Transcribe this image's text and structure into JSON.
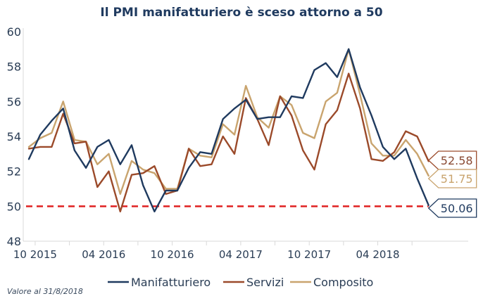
{
  "chart_data": {
    "type": "line",
    "title": "Il PMI manifatturiero è sceso attorno a 50",
    "xlabel": "",
    "ylabel": "",
    "ylim": [
      48,
      60
    ],
    "yticks": [
      "48",
      "50",
      "52",
      "54",
      "56",
      "58",
      "60"
    ],
    "x": [
      "09 2015",
      "10 2015",
      "11 2015",
      "12 2015",
      "01 2016",
      "02 2016",
      "03 2016",
      "04 2016",
      "05 2016",
      "06 2016",
      "07 2016",
      "08 2016",
      "09 2016",
      "10 2016",
      "11 2016",
      "12 2016",
      "01 2017",
      "02 2017",
      "03 2017",
      "04 2017",
      "05 2017",
      "06 2017",
      "07 2017",
      "08 2017",
      "09 2017",
      "10 2017",
      "11 2017",
      "12 2017",
      "01 2018",
      "02 2018",
      "03 2018",
      "04 2018",
      "05 2018",
      "06 2018",
      "07 2018",
      "08 2018"
    ],
    "xtick_labels": [
      "10 2015",
      "04 2016",
      "10 2016",
      "04 2017",
      "10 2017",
      "04 2018"
    ],
    "grid": false,
    "legend_position": "bottom",
    "reference_line": {
      "value": 50,
      "style": "dashed",
      "color": "#e02020"
    },
    "series": [
      {
        "name": "Manifatturiero",
        "color": "#1f3a5f",
        "values": [
          52.7,
          54.1,
          54.9,
          55.6,
          53.2,
          52.2,
          53.4,
          53.8,
          52.4,
          53.5,
          51.2,
          49.7,
          50.9,
          50.9,
          52.2,
          53.1,
          53.0,
          55.0,
          55.6,
          56.1,
          55.0,
          55.1,
          55.1,
          56.3,
          56.2,
          57.8,
          58.2,
          57.4,
          59.0,
          56.8,
          55.2,
          53.4,
          52.7,
          53.3,
          51.6,
          50.06
        ],
        "end_label": "50.06"
      },
      {
        "name": "Servizi",
        "color": "#9b4a2a",
        "values": [
          53.3,
          53.4,
          53.4,
          55.3,
          53.6,
          53.7,
          51.1,
          52.0,
          49.7,
          51.8,
          51.9,
          52.3,
          50.7,
          50.9,
          53.3,
          52.3,
          52.4,
          54.0,
          53.0,
          56.2,
          55.0,
          53.5,
          56.3,
          55.2,
          53.2,
          52.1,
          54.7,
          55.5,
          57.6,
          55.6,
          52.7,
          52.6,
          53.1,
          54.3,
          54.0,
          52.58
        ],
        "end_label": "52.58"
      },
      {
        "name": "Composito",
        "color": "#c9a46e",
        "values": [
          53.4,
          53.9,
          54.2,
          56.0,
          53.8,
          53.7,
          52.4,
          53.0,
          50.7,
          52.6,
          52.1,
          51.9,
          51.0,
          51.0,
          53.3,
          52.9,
          52.8,
          54.7,
          54.1,
          56.9,
          55.1,
          54.5,
          56.3,
          55.8,
          54.2,
          53.9,
          56.0,
          56.5,
          59.0,
          56.4,
          53.6,
          52.9,
          52.9,
          53.8,
          53.0,
          51.75
        ],
        "end_label": "51.75"
      }
    ]
  },
  "footnote": "Valore al 31/8/2018",
  "title_color": "#1f3a5f"
}
